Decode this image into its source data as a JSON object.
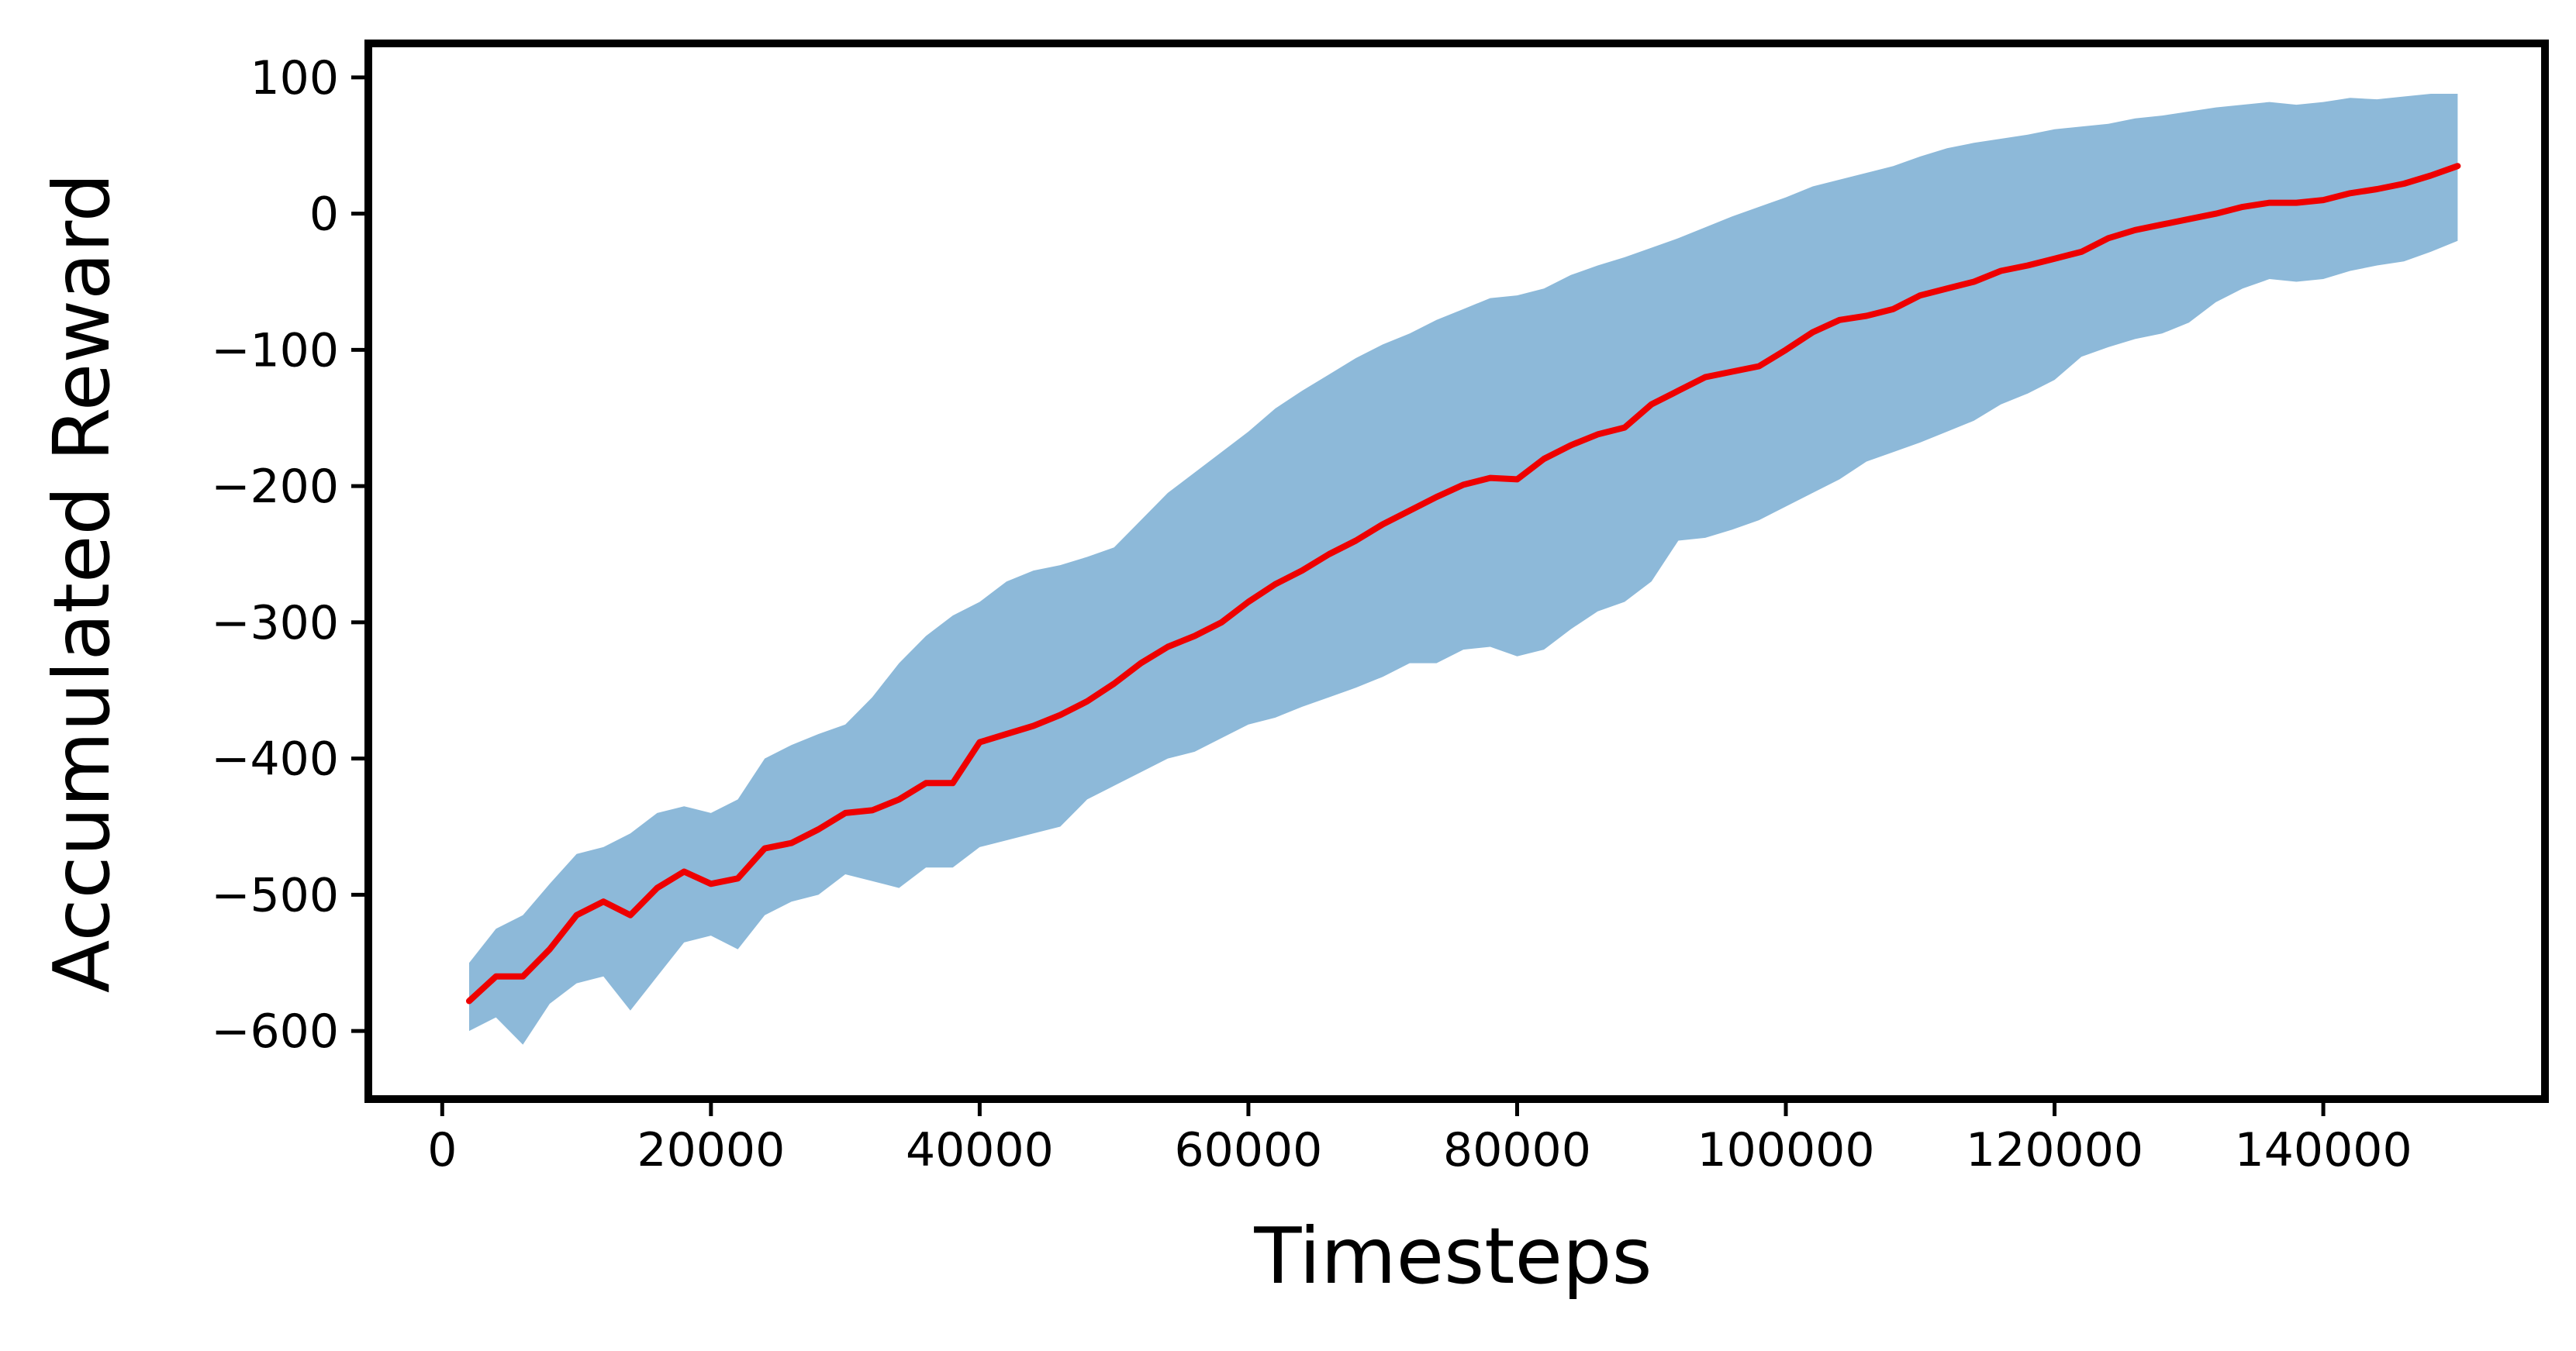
{
  "chart_data": {
    "type": "line",
    "title": "",
    "xlabel": "Timesteps",
    "ylabel": "Accumulated Reward",
    "xlim": [
      -5500,
      156500
    ],
    "ylim": [
      -650,
      125
    ],
    "xticks": [
      0,
      20000,
      40000,
      60000,
      80000,
      100000,
      120000,
      140000
    ],
    "yticks": [
      100,
      0,
      -100,
      -200,
      -300,
      -400,
      -500,
      -600
    ],
    "ytick_labels": [
      "100",
      "0",
      "−100",
      "−200",
      "−300",
      "−400",
      "−500",
      "−600"
    ],
    "grid": false,
    "legend": "none",
    "colors": {
      "mean_line": "#ee0000",
      "band": "#8db9d9",
      "frame": "#000000"
    },
    "series": [
      {
        "kind": "mean",
        "x": [
          2000,
          4000,
          6000,
          8000,
          10000,
          12000,
          14000,
          16000,
          18000,
          20000,
          22000,
          24000,
          26000,
          28000,
          30000,
          32000,
          34000,
          36000,
          38000,
          40000,
          42000,
          44000,
          46000,
          48000,
          50000,
          52000,
          54000,
          56000,
          58000,
          60000,
          62000,
          64000,
          66000,
          68000,
          70000,
          72000,
          74000,
          76000,
          78000,
          80000,
          82000,
          84000,
          86000,
          88000,
          90000,
          92000,
          94000,
          96000,
          98000,
          100000,
          102000,
          104000,
          106000,
          108000,
          110000,
          112000,
          114000,
          116000,
          118000,
          120000,
          122000,
          124000,
          126000,
          128000,
          130000,
          132000,
          134000,
          136000,
          138000,
          140000,
          142000,
          144000,
          146000,
          148000,
          150000
        ],
        "values": [
          -578,
          -560,
          -560,
          -540,
          -515,
          -505,
          -515,
          -495,
          -483,
          -492,
          -488,
          -466,
          -462,
          -452,
          -440,
          -438,
          -430,
          -418,
          -418,
          -388,
          -382,
          -376,
          -368,
          -358,
          -345,
          -330,
          -318,
          -310,
          -300,
          -285,
          -272,
          -262,
          -250,
          -240,
          -228,
          -218,
          -208,
          -199,
          -194,
          -195,
          -180,
          -170,
          -162,
          -157,
          -140,
          -130,
          -120,
          -116,
          -112,
          -100,
          -87,
          -78,
          -75,
          -70,
          -60,
          -55,
          -50,
          -42,
          -38,
          -33,
          -28,
          -18,
          -12,
          -8,
          -4,
          0,
          5,
          8,
          8,
          10,
          15,
          18,
          22,
          28,
          35
        ]
      },
      {
        "kind": "band-upper",
        "x": [
          2000,
          4000,
          6000,
          8000,
          10000,
          12000,
          14000,
          16000,
          18000,
          20000,
          22000,
          24000,
          26000,
          28000,
          30000,
          32000,
          34000,
          36000,
          38000,
          40000,
          42000,
          44000,
          46000,
          48000,
          50000,
          52000,
          54000,
          56000,
          58000,
          60000,
          62000,
          64000,
          66000,
          68000,
          70000,
          72000,
          74000,
          76000,
          78000,
          80000,
          82000,
          84000,
          86000,
          88000,
          90000,
          92000,
          94000,
          96000,
          98000,
          100000,
          102000,
          104000,
          106000,
          108000,
          110000,
          112000,
          114000,
          116000,
          118000,
          120000,
          122000,
          124000,
          126000,
          128000,
          130000,
          132000,
          134000,
          136000,
          138000,
          140000,
          142000,
          144000,
          146000,
          148000,
          150000
        ],
        "values": [
          -550,
          -525,
          -515,
          -492,
          -470,
          -465,
          -455,
          -440,
          -435,
          -440,
          -430,
          -400,
          -390,
          -382,
          -375,
          -355,
          -330,
          -310,
          -295,
          -285,
          -270,
          -262,
          -258,
          -252,
          -245,
          -225,
          -205,
          -190,
          -175,
          -160,
          -143,
          -130,
          -118,
          -106,
          -96,
          -88,
          -78,
          -70,
          -62,
          -60,
          -55,
          -45,
          -38,
          -32,
          -25,
          -18,
          -10,
          -2,
          5,
          12,
          20,
          25,
          30,
          35,
          42,
          48,
          52,
          55,
          58,
          62,
          64,
          66,
          70,
          72,
          75,
          78,
          80,
          82,
          80,
          82,
          85,
          84,
          86,
          88,
          88
        ]
      },
      {
        "kind": "band-lower",
        "x": [
          2000,
          4000,
          6000,
          8000,
          10000,
          12000,
          14000,
          16000,
          18000,
          20000,
          22000,
          24000,
          26000,
          28000,
          30000,
          32000,
          34000,
          36000,
          38000,
          40000,
          42000,
          44000,
          46000,
          48000,
          50000,
          52000,
          54000,
          56000,
          58000,
          60000,
          62000,
          64000,
          66000,
          68000,
          70000,
          72000,
          74000,
          76000,
          78000,
          80000,
          82000,
          84000,
          86000,
          88000,
          90000,
          92000,
          94000,
          96000,
          98000,
          100000,
          102000,
          104000,
          106000,
          108000,
          110000,
          112000,
          114000,
          116000,
          118000,
          120000,
          122000,
          124000,
          126000,
          128000,
          130000,
          132000,
          134000,
          136000,
          138000,
          140000,
          142000,
          144000,
          146000,
          148000,
          150000
        ],
        "values": [
          -600,
          -590,
          -610,
          -580,
          -565,
          -560,
          -585,
          -560,
          -535,
          -530,
          -540,
          -515,
          -505,
          -500,
          -485,
          -490,
          -495,
          -480,
          -480,
          -465,
          -460,
          -455,
          -450,
          -430,
          -420,
          -410,
          -400,
          -395,
          -385,
          -375,
          -370,
          -362,
          -355,
          -348,
          -340,
          -330,
          -330,
          -320,
          -318,
          -325,
          -320,
          -305,
          -292,
          -285,
          -270,
          -240,
          -238,
          -232,
          -225,
          -215,
          -205,
          -195,
          -182,
          -175,
          -168,
          -160,
          -152,
          -140,
          -132,
          -122,
          -105,
          -98,
          -92,
          -88,
          -80,
          -65,
          -55,
          -48,
          -50,
          -48,
          -42,
          -38,
          -35,
          -28,
          -20
        ]
      }
    ]
  }
}
